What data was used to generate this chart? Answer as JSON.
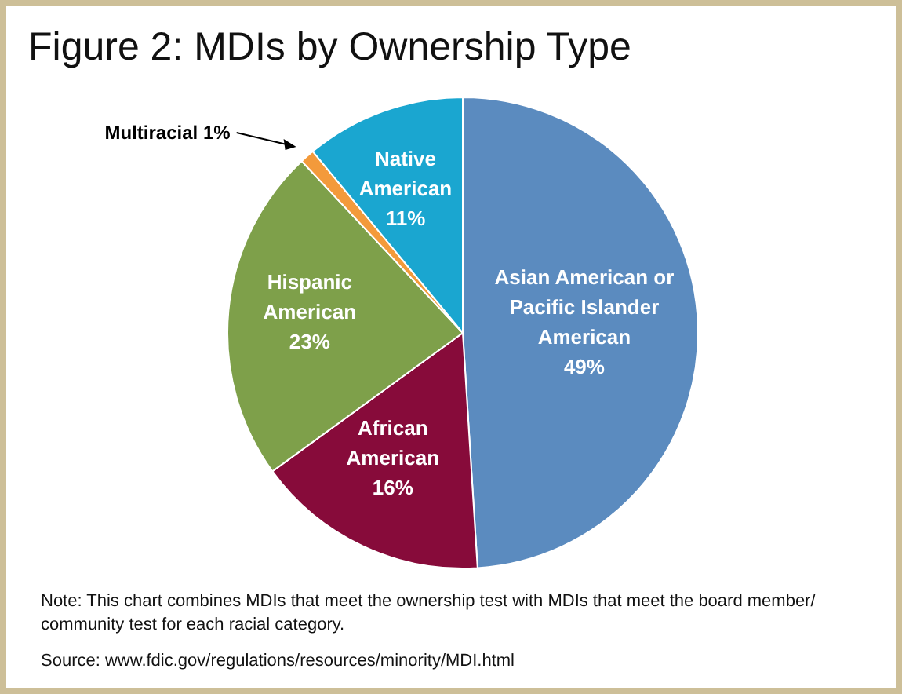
{
  "chart_data": {
    "type": "pie",
    "title": "Figure 2: MDIs by Ownership Type",
    "categories": [
      "Asian American or Pacific Islander American",
      "African American",
      "Hispanic American",
      "Multiracial",
      "Native American"
    ],
    "values": [
      49,
      16,
      23,
      1,
      11
    ],
    "value_labels": [
      "49%",
      "16%",
      "23%",
      "1%",
      "11%"
    ],
    "colors": [
      "#5b8bbf",
      "#870b3a",
      "#7ea04a",
      "#f39a3b",
      "#1aa6d0"
    ],
    "legend": false,
    "annotations": [
      "Note: This chart combines MDIs that meet the ownership test with MDIs that meet the board member/ community test for each racial category.",
      "Source: www.fdic.gov/regulations/resources/minority/MDI.html"
    ]
  }
}
